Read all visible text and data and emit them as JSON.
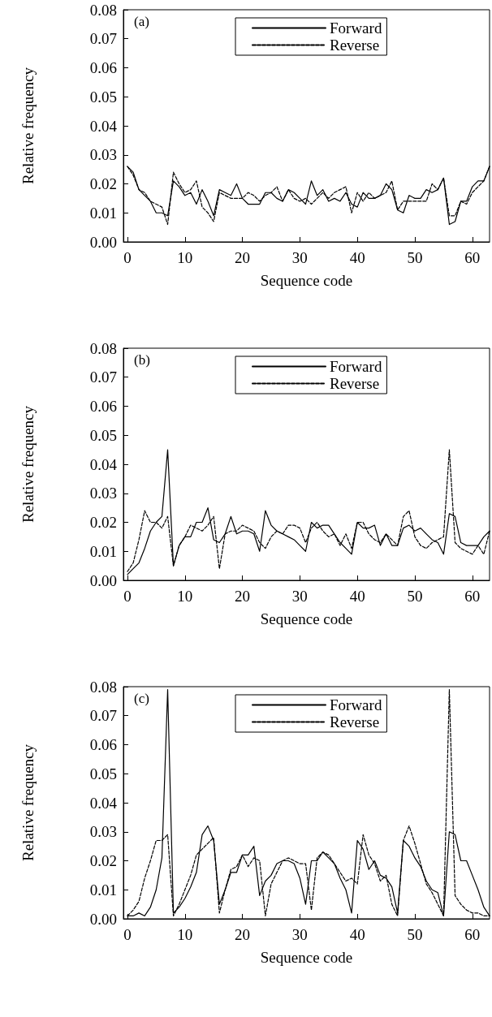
{
  "chart_data": [
    {
      "type": "line",
      "annotations": [
        "(a)"
      ],
      "xlabel": "Sequence code",
      "ylabel": "Relative frequency",
      "legend": "top right",
      "grid": false,
      "marker": "none",
      "x": [
        0,
        1,
        2,
        3,
        4,
        5,
        6,
        7,
        8,
        9,
        10,
        11,
        12,
        13,
        14,
        15,
        16,
        17,
        18,
        19,
        20,
        21,
        22,
        23,
        24,
        25,
        26,
        27,
        28,
        29,
        30,
        31,
        32,
        33,
        34,
        35,
        36,
        37,
        38,
        39,
        40,
        41,
        42,
        43,
        44,
        45,
        46,
        47,
        48,
        49,
        50,
        51,
        52,
        53,
        54,
        55,
        56,
        57,
        58,
        59,
        60,
        61,
        62,
        63
      ],
      "xlim": [
        -0.7,
        63
      ],
      "xticks": [
        0,
        10,
        20,
        30,
        40,
        50,
        60
      ],
      "ylim": [
        0,
        0.08
      ],
      "yticks": [
        {
          "value": 0,
          "label": "0.00"
        },
        {
          "value": 0.01,
          "label": "0.01"
        },
        {
          "value": 0.02,
          "label": "0.02"
        },
        {
          "value": 0.03,
          "label": "0.03"
        },
        {
          "value": 0.04,
          "label": "0.04"
        },
        {
          "value": 0.05,
          "label": "0.05"
        },
        {
          "value": 0.06,
          "label": "0.06"
        },
        {
          "value": 0.07,
          "label": "0.07"
        },
        {
          "value": 0.08,
          "label": "0.08"
        }
      ],
      "series": [
        {
          "name": "Forward",
          "color": "#000000",
          "line_style": "solid",
          "values": [
            0.026,
            0.024,
            0.018,
            0.016,
            0.014,
            0.01,
            0.01,
            0.009,
            0.021,
            0.019,
            0.016,
            0.017,
            0.013,
            0.018,
            0.014,
            0.009,
            0.018,
            0.017,
            0.016,
            0.02,
            0.015,
            0.013,
            0.013,
            0.013,
            0.017,
            0.017,
            0.015,
            0.014,
            0.018,
            0.017,
            0.015,
            0.013,
            0.021,
            0.016,
            0.018,
            0.014,
            0.015,
            0.014,
            0.017,
            0.013,
            0.012,
            0.017,
            0.015,
            0.015,
            0.016,
            0.02,
            0.018,
            0.011,
            0.01,
            0.016,
            0.015,
            0.015,
            0.018,
            0.017,
            0.018,
            0.022,
            0.006,
            0.007,
            0.014,
            0.014,
            0.019,
            0.021,
            0.021,
            0.026
          ]
        },
        {
          "name": "Reverse",
          "color": "#000000",
          "line_style": "dashed",
          "values": [
            0.026,
            0.023,
            0.018,
            0.017,
            0.014,
            0.013,
            0.012,
            0.006,
            0.024,
            0.02,
            0.017,
            0.018,
            0.021,
            0.012,
            0.01,
            0.007,
            0.017,
            0.016,
            0.015,
            0.015,
            0.015,
            0.017,
            0.016,
            0.014,
            0.016,
            0.017,
            0.019,
            0.014,
            0.018,
            0.015,
            0.014,
            0.015,
            0.013,
            0.015,
            0.017,
            0.015,
            0.017,
            0.018,
            0.019,
            0.01,
            0.017,
            0.014,
            0.017,
            0.015,
            0.016,
            0.017,
            0.021,
            0.011,
            0.014,
            0.014,
            0.014,
            0.014,
            0.014,
            0.02,
            0.018,
            0.022,
            0.009,
            0.009,
            0.014,
            0.013,
            0.017,
            0.019,
            0.021,
            0.026
          ]
        }
      ]
    },
    {
      "type": "line",
      "annotations": [
        "(b)"
      ],
      "xlabel": "Sequence code",
      "ylabel": "Relative frequency",
      "legend": "top right",
      "grid": false,
      "marker": "none",
      "x": [
        0,
        1,
        2,
        3,
        4,
        5,
        6,
        7,
        8,
        9,
        10,
        11,
        12,
        13,
        14,
        15,
        16,
        17,
        18,
        19,
        20,
        21,
        22,
        23,
        24,
        25,
        26,
        27,
        28,
        29,
        30,
        31,
        32,
        33,
        34,
        35,
        36,
        37,
        38,
        39,
        40,
        41,
        42,
        43,
        44,
        45,
        46,
        47,
        48,
        49,
        50,
        51,
        52,
        53,
        54,
        55,
        56,
        57,
        58,
        59,
        60,
        61,
        62,
        63
      ],
      "xlim": [
        -0.7,
        63
      ],
      "xticks": [
        0,
        10,
        20,
        30,
        40,
        50,
        60
      ],
      "ylim": [
        0,
        0.08
      ],
      "yticks": [
        {
          "value": 0,
          "label": "0.00"
        },
        {
          "value": 0.01,
          "label": "0.01"
        },
        {
          "value": 0.02,
          "label": "0.02"
        },
        {
          "value": 0.03,
          "label": "0.03"
        },
        {
          "value": 0.04,
          "label": "0.04"
        },
        {
          "value": 0.05,
          "label": "0.05"
        },
        {
          "value": 0.06,
          "label": "0.06"
        },
        {
          "value": 0.07,
          "label": "0.07"
        },
        {
          "value": 0.08,
          "label": "0.08"
        }
      ],
      "series": [
        {
          "name": "Forward",
          "color": "#000000",
          "line_style": "solid",
          "values": [
            0.002,
            0.004,
            0.006,
            0.011,
            0.017,
            0.02,
            0.022,
            0.045,
            0.005,
            0.012,
            0.015,
            0.015,
            0.02,
            0.02,
            0.025,
            0.014,
            0.013,
            0.016,
            0.022,
            0.016,
            0.017,
            0.017,
            0.016,
            0.01,
            0.024,
            0.019,
            0.017,
            0.016,
            0.015,
            0.014,
            0.012,
            0.01,
            0.02,
            0.018,
            0.019,
            0.019,
            0.016,
            0.013,
            0.011,
            0.009,
            0.02,
            0.018,
            0.018,
            0.019,
            0.012,
            0.016,
            0.012,
            0.012,
            0.018,
            0.019,
            0.017,
            0.018,
            0.016,
            0.014,
            0.013,
            0.009,
            0.023,
            0.022,
            0.013,
            0.012,
            0.012,
            0.012,
            0.015,
            0.017
          ]
        },
        {
          "name": "Reverse",
          "color": "#000000",
          "line_style": "dashed",
          "values": [
            0.003,
            0.006,
            0.014,
            0.024,
            0.02,
            0.02,
            0.018,
            0.022,
            0.005,
            0.012,
            0.015,
            0.019,
            0.018,
            0.017,
            0.019,
            0.022,
            0.004,
            0.016,
            0.017,
            0.017,
            0.019,
            0.018,
            0.017,
            0.013,
            0.011,
            0.015,
            0.017,
            0.016,
            0.019,
            0.019,
            0.018,
            0.013,
            0.018,
            0.02,
            0.017,
            0.015,
            0.016,
            0.012,
            0.016,
            0.011,
            0.02,
            0.02,
            0.016,
            0.014,
            0.013,
            0.016,
            0.014,
            0.012,
            0.022,
            0.024,
            0.015,
            0.012,
            0.011,
            0.013,
            0.014,
            0.015,
            0.045,
            0.013,
            0.011,
            0.01,
            0.009,
            0.012,
            0.009,
            0.017
          ]
        }
      ]
    },
    {
      "type": "line",
      "annotations": [
        "(c)"
      ],
      "xlabel": "Sequence code",
      "ylabel": "Relative frequency",
      "legend": "top right",
      "grid": false,
      "marker": "none",
      "x": [
        0,
        1,
        2,
        3,
        4,
        5,
        6,
        7,
        8,
        9,
        10,
        11,
        12,
        13,
        14,
        15,
        16,
        17,
        18,
        19,
        20,
        21,
        22,
        23,
        24,
        25,
        26,
        27,
        28,
        29,
        30,
        31,
        32,
        33,
        34,
        35,
        36,
        37,
        38,
        39,
        40,
        41,
        42,
        43,
        44,
        45,
        46,
        47,
        48,
        49,
        50,
        51,
        52,
        53,
        54,
        55,
        56,
        57,
        58,
        59,
        60,
        61,
        62,
        63
      ],
      "xlim": [
        -0.7,
        63
      ],
      "xticks": [
        0,
        10,
        20,
        30,
        40,
        50,
        60
      ],
      "ylim": [
        0,
        0.08
      ],
      "yticks": [
        {
          "value": 0,
          "label": "0.00"
        },
        {
          "value": 0.01,
          "label": "0.01"
        },
        {
          "value": 0.02,
          "label": "0.02"
        },
        {
          "value": 0.03,
          "label": "0.03"
        },
        {
          "value": 0.04,
          "label": "0.04"
        },
        {
          "value": 0.05,
          "label": "0.05"
        },
        {
          "value": 0.06,
          "label": "0.06"
        },
        {
          "value": 0.07,
          "label": "0.07"
        },
        {
          "value": 0.08,
          "label": "0.08"
        }
      ],
      "series": [
        {
          "name": "Forward",
          "color": "#000000",
          "line_style": "solid",
          "values": [
            0.001,
            0.001,
            0.002,
            0.001,
            0.004,
            0.01,
            0.021,
            0.079,
            0.002,
            0.004,
            0.007,
            0.011,
            0.016,
            0.029,
            0.032,
            0.027,
            0.005,
            0.01,
            0.016,
            0.016,
            0.022,
            0.022,
            0.025,
            0.008,
            0.013,
            0.015,
            0.019,
            0.02,
            0.02,
            0.019,
            0.014,
            0.005,
            0.02,
            0.02,
            0.023,
            0.021,
            0.019,
            0.014,
            0.01,
            0.002,
            0.027,
            0.024,
            0.017,
            0.02,
            0.015,
            0.014,
            0.011,
            0.002,
            0.027,
            0.025,
            0.021,
            0.018,
            0.013,
            0.01,
            0.009,
            0.001,
            0.03,
            0.029,
            0.02,
            0.02,
            0.015,
            0.01,
            0.004,
            0.001
          ]
        },
        {
          "name": "Reverse",
          "color": "#000000",
          "line_style": "dashed",
          "values": [
            0.001,
            0.003,
            0.006,
            0.014,
            0.02,
            0.027,
            0.027,
            0.029,
            0.001,
            0.005,
            0.01,
            0.015,
            0.022,
            0.024,
            0.026,
            0.028,
            0.002,
            0.01,
            0.017,
            0.018,
            0.022,
            0.018,
            0.021,
            0.02,
            0.001,
            0.012,
            0.016,
            0.02,
            0.021,
            0.02,
            0.019,
            0.019,
            0.003,
            0.021,
            0.023,
            0.022,
            0.019,
            0.016,
            0.013,
            0.014,
            0.012,
            0.029,
            0.022,
            0.019,
            0.013,
            0.015,
            0.005,
            0.001,
            0.027,
            0.032,
            0.026,
            0.019,
            0.012,
            0.009,
            0.005,
            0.001,
            0.079,
            0.008,
            0.005,
            0.003,
            0.002,
            0.002,
            0.001,
            0.001
          ]
        }
      ]
    }
  ]
}
